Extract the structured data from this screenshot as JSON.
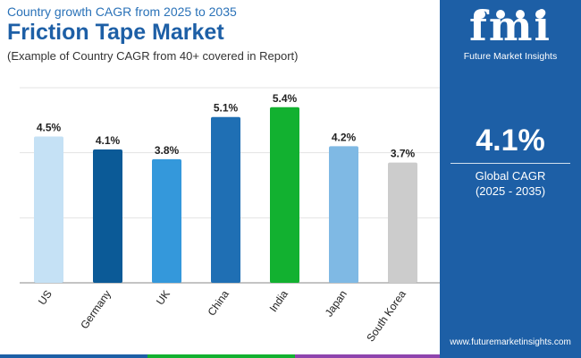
{
  "header": {
    "subtitle": "Country growth CAGR from 2025 to 2035",
    "title": "Friction Tape Market",
    "note": "(Example of Country CAGR from 40+ covered in Report)"
  },
  "chart_data": {
    "type": "bar",
    "categories": [
      "US",
      "Germany",
      "UK",
      "China",
      "India",
      "Japan",
      "South Korea"
    ],
    "values": [
      4.5,
      4.1,
      3.8,
      5.1,
      5.4,
      4.2,
      3.7
    ],
    "value_labels": [
      "4.5%",
      "4.1%",
      "3.8%",
      "5.1%",
      "5.4%",
      "4.2%",
      "3.7%"
    ],
    "colors": [
      "#c5e1f5",
      "#0b5a97",
      "#3498db",
      "#1f6fb4",
      "#12b130",
      "#7fb9e4",
      "#cccccc"
    ],
    "unit": "%",
    "ylim": [
      0,
      6
    ],
    "grid": true,
    "legend": "none"
  },
  "sidebar": {
    "logo_text": "fmi",
    "company": "Future Market Insights",
    "global_value": "4.1%",
    "global_label": "Global CAGR",
    "global_range": "(2025 - 2035)",
    "website": "www.futuremarketinsights.com"
  },
  "colors": {
    "brand_blue": "#1d5fa6",
    "bottom_bar": [
      "#1d5fa6",
      "#12b130",
      "#8e44ad",
      "#1d5fa6"
    ]
  }
}
